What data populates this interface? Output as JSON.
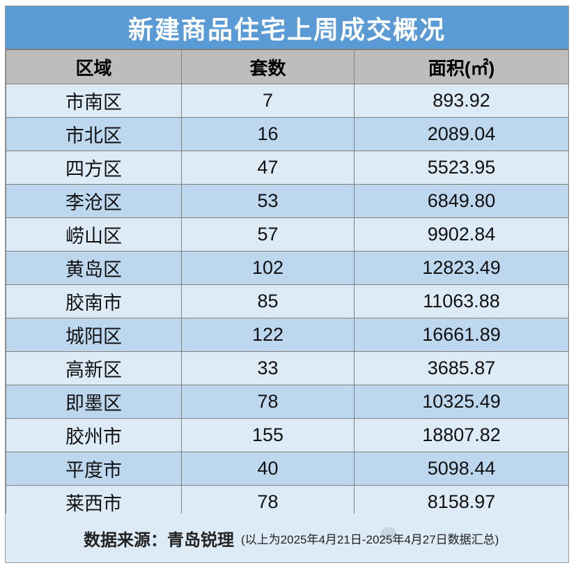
{
  "title": "新建商品住宅上周成交概况",
  "headers": [
    "区域",
    "套数",
    "面积(㎡)"
  ],
  "rows": [
    {
      "district": "市南区",
      "units": "7",
      "area": "893.92"
    },
    {
      "district": "市北区",
      "units": "16",
      "area": "2089.04"
    },
    {
      "district": "四方区",
      "units": "47",
      "area": "5523.95"
    },
    {
      "district": "李沧区",
      "units": "53",
      "area": "6849.80"
    },
    {
      "district": "崂山区",
      "units": "57",
      "area": "9902.84"
    },
    {
      "district": "黄岛区",
      "units": "102",
      "area": "12823.49"
    },
    {
      "district": "胶南市",
      "units": "85",
      "area": "11063.88"
    },
    {
      "district": "城阳区",
      "units": "122",
      "area": "16661.89"
    },
    {
      "district": "高新区",
      "units": "33",
      "area": "3685.87"
    },
    {
      "district": "即墨区",
      "units": "78",
      "area": "10325.49"
    },
    {
      "district": "胶州市",
      "units": "155",
      "area": "18807.82"
    },
    {
      "district": "平度市",
      "units": "40",
      "area": "5098.44"
    },
    {
      "district": "莱西市",
      "units": "78",
      "area": "8158.97"
    }
  ],
  "footer": {
    "source": "数据来源：青岛锐理",
    "note": "(以上为2025年4月21日-2025年4月27日数据汇总)"
  },
  "colors": {
    "title_bg": "#5b9bd5",
    "header_bg": "#bdbdbd",
    "row_light": "#ddebf7",
    "row_dark": "#bdd7ee"
  }
}
